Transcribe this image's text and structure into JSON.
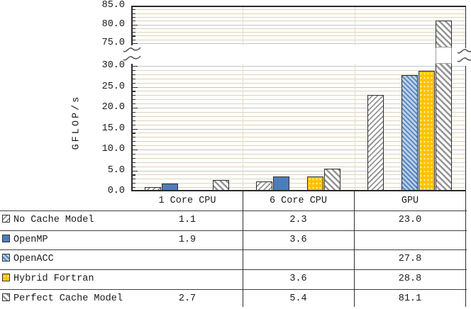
{
  "chart_data": {
    "type": "bar",
    "title": "",
    "ylabel": "GFLOP/s",
    "categories": [
      "1 Core CPU",
      "6 Core CPU",
      "GPU"
    ],
    "series": [
      {
        "name": "No Cache Model",
        "style": "gray-forward-hatch",
        "values": [
          1.1,
          2.3,
          23.0
        ]
      },
      {
        "name": "OpenMP",
        "style": "solid-blue",
        "values": [
          1.9,
          3.6,
          null
        ]
      },
      {
        "name": "OpenACC",
        "style": "blue-back-hatch",
        "values": [
          null,
          null,
          27.8
        ]
      },
      {
        "name": "Hybrid Fortran",
        "style": "yellow-dots",
        "values": [
          null,
          3.6,
          28.8
        ]
      },
      {
        "name": "Perfect Cache Model",
        "style": "gray-back-hatch",
        "values": [
          2.7,
          5.4,
          81.1
        ]
      }
    ],
    "y_axis": {
      "has_break": true,
      "lower_range": [
        0,
        30.5
      ],
      "upper_range": [
        74,
        85
      ],
      "lower_ticks": [
        0,
        5,
        10,
        15,
        20,
        25,
        30
      ],
      "upper_ticks": [
        75,
        80,
        85
      ],
      "minor_tick_step": 1,
      "tick_decimals": 1
    },
    "grid": "on",
    "legend_position": "table-below-chart"
  },
  "table": {
    "rows": [
      {
        "label": "No Cache Model",
        "values": [
          "1.1",
          "2.3",
          "23.0"
        ]
      },
      {
        "label": "OpenMP",
        "values": [
          "1.9",
          "3.6",
          ""
        ]
      },
      {
        "label": "OpenACC",
        "values": [
          "",
          "",
          "27.8"
        ]
      },
      {
        "label": "Hybrid Fortran",
        "values": [
          "",
          "3.6",
          "28.8"
        ]
      },
      {
        "label": "Perfect Cache Model",
        "values": [
          "2.7",
          "5.4",
          "81.1"
        ]
      }
    ]
  },
  "colors": {
    "openmp_blue": "#4d7db8",
    "openacc_light_blue": "#bdd0e7",
    "openacc_stripe_blue": "#5585bd",
    "hybrid_yellow": "#ffc101",
    "hatch_gray": "#949494",
    "grid_minor": "#ded3b6",
    "grid_major": "#c3c5ca",
    "axis": "#2a2a2a",
    "text": "#1a1a1a"
  }
}
